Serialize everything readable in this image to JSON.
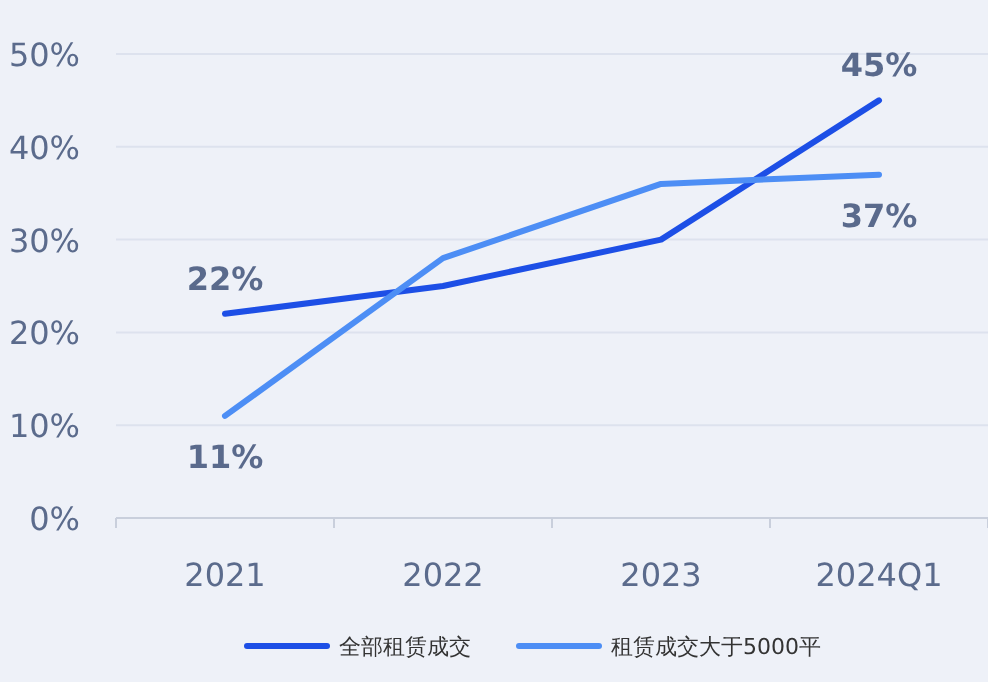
{
  "chart_data": {
    "type": "line",
    "categories": [
      "2021",
      "2022",
      "2023",
      "2024Q1"
    ],
    "series": [
      {
        "name": "全部租赁成交",
        "color": "#1d4fe6",
        "values": [
          22,
          25,
          30,
          45
        ],
        "value_labels": [
          "22%",
          null,
          null,
          "45%"
        ]
      },
      {
        "name": "租赁成交大于5000平",
        "color": "#4d8ef5",
        "values": [
          11,
          28,
          36,
          37
        ],
        "value_labels": [
          "11%",
          null,
          null,
          "37%"
        ]
      }
    ],
    "ylim": [
      0,
      50
    ],
    "yticks": [
      {
        "value": 0,
        "label": "0%"
      },
      {
        "value": 10,
        "label": "10%"
      },
      {
        "value": 20,
        "label": "20%"
      },
      {
        "value": 30,
        "label": "30%"
      },
      {
        "value": 40,
        "label": "40%"
      },
      {
        "value": 50,
        "label": "50%"
      }
    ],
    "grid": "y",
    "legend": "bottom"
  }
}
